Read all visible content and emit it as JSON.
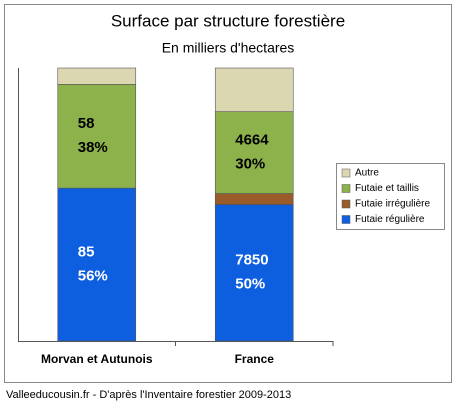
{
  "chart_data": {
    "type": "stacked_bar",
    "title": "Surface par structure forestière",
    "subtitle": "En milliers d'hectares",
    "categories": [
      "Morvan et Autunois",
      "France"
    ],
    "ylim": [
      0,
      100
    ],
    "legend": "right",
    "series": [
      {
        "name": "Futaie régulière",
        "color": "#0e5fdf",
        "values": [
          56,
          50
        ],
        "value_labels": [
          "56%",
          "50%"
        ],
        "amounts": [
          85,
          7850
        ],
        "label_color": "#ffffff"
      },
      {
        "name": "Futaie irrégulière",
        "color": "#9a5b2b",
        "values": [
          0,
          4
        ]
      },
      {
        "name": "Futaie et taillis",
        "color": "#8db24b",
        "values": [
          38,
          30
        ],
        "value_labels": [
          "38%",
          "30%"
        ],
        "amounts": [
          58,
          4664
        ],
        "label_color": "#000000"
      },
      {
        "name": "Autre",
        "color": "#dad7b1",
        "values": [
          6,
          16
        ]
      }
    ],
    "source": "Valleeducousin.fr - D'après l'Inventaire forestier 2009-2013"
  }
}
